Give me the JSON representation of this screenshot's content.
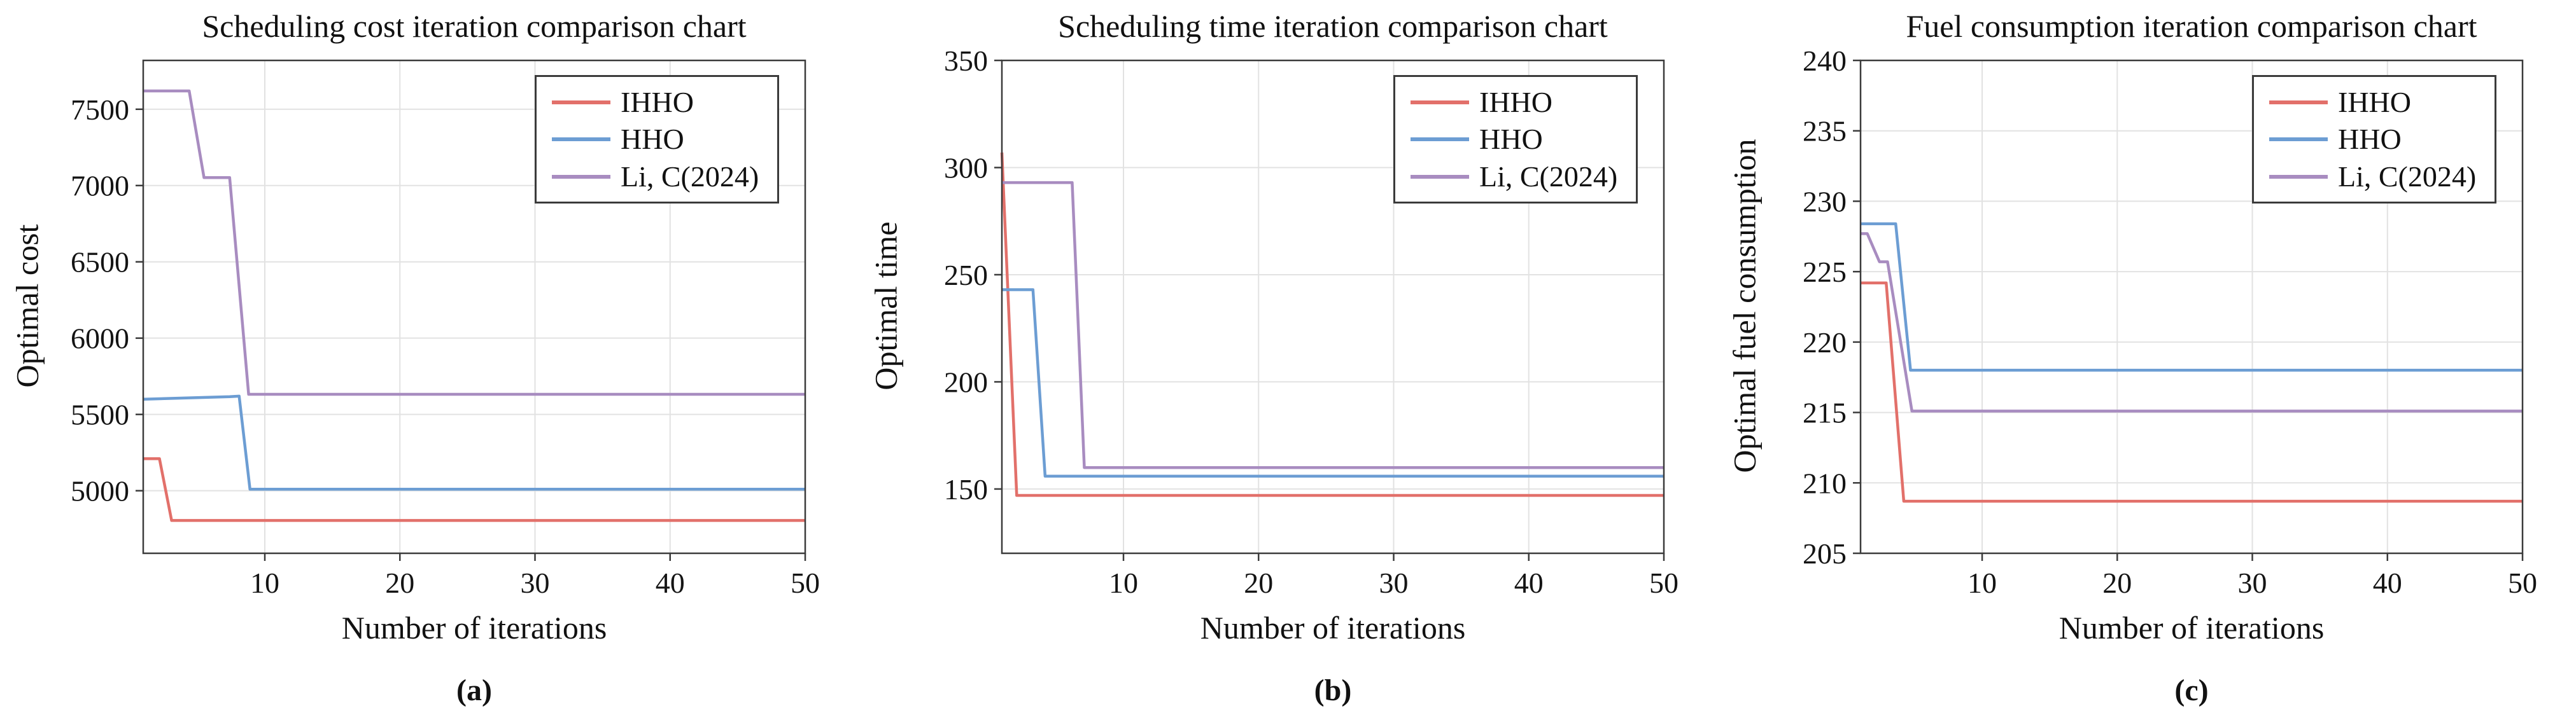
{
  "style": {
    "background": "#ffffff",
    "grid_color": "#e2e2e2",
    "axis_color": "#3b3b3b",
    "text_color": "#141414",
    "legend_border_color": "#3b3b3b"
  },
  "chart_data": [
    {
      "type": "line",
      "title": "Scheduling cost iteration comparison chart",
      "xlabel": "Number of iterations",
      "ylabel": "Optimal cost",
      "caption": "(a)",
      "xlim": [
        1,
        50
      ],
      "ylim": [
        4590,
        7820
      ],
      "xticks": [
        10,
        20,
        30,
        40,
        50
      ],
      "yticks": [
        5000,
        5500,
        6000,
        6500,
        7000,
        7500
      ],
      "grid": true,
      "legend_position": "top-right",
      "series": [
        {
          "name": "IHHO",
          "color": "#e2706a",
          "points": [
            [
              1,
              5210
            ],
            [
              2.2,
              5210
            ],
            [
              3.1,
              4805
            ],
            [
              50,
              4805
            ]
          ]
        },
        {
          "name": "HHO",
          "color": "#6c9dd3",
          "points": [
            [
              1,
              5600
            ],
            [
              7.4,
              5616
            ],
            [
              8.1,
              5620
            ],
            [
              8.9,
              5010
            ],
            [
              50,
              5010
            ]
          ]
        },
        {
          "name": "Li, C(2024)",
          "color": "#a88cc0",
          "points": [
            [
              1,
              7620
            ],
            [
              4.4,
              7620
            ],
            [
              5.5,
              7052
            ],
            [
              7.4,
              7052
            ],
            [
              8.8,
              5632
            ],
            [
              50,
              5632
            ]
          ]
        }
      ]
    },
    {
      "type": "line",
      "title": "Scheduling time iteration comparison chart",
      "xlabel": "Number of iterations",
      "ylabel": "Optimal time",
      "caption": "(b)",
      "xlim": [
        1,
        50
      ],
      "ylim": [
        120,
        350
      ],
      "xticks": [
        10,
        20,
        30,
        40,
        50
      ],
      "yticks": [
        150,
        200,
        250,
        300,
        350
      ],
      "grid": true,
      "legend_position": "top-right",
      "series": [
        {
          "name": "IHHO",
          "color": "#e2706a",
          "points": [
            [
              1,
              307
            ],
            [
              2.1,
              147
            ],
            [
              50,
              147
            ]
          ]
        },
        {
          "name": "HHO",
          "color": "#6c9dd3",
          "points": [
            [
              1,
              243
            ],
            [
              3.3,
              243
            ],
            [
              4.2,
              156
            ],
            [
              50,
              156
            ]
          ]
        },
        {
          "name": "Li, C(2024)",
          "color": "#a88cc0",
          "points": [
            [
              1,
              293
            ],
            [
              6.2,
              293
            ],
            [
              7.1,
              160
            ],
            [
              50,
              160
            ]
          ]
        }
      ]
    },
    {
      "type": "line",
      "title": "Fuel consumption iteration comparison chart",
      "xlabel": "Number of iterations",
      "ylabel": "Optimal fuel consumption",
      "caption": "(c)",
      "xlim": [
        1,
        50
      ],
      "ylim": [
        205,
        240
      ],
      "xticks": [
        10,
        20,
        30,
        40,
        50
      ],
      "yticks": [
        205,
        210,
        215,
        220,
        225,
        230,
        235,
        240
      ],
      "grid": true,
      "legend_position": "top-right",
      "series": [
        {
          "name": "IHHO",
          "color": "#e2706a",
          "points": [
            [
              1,
              224.2
            ],
            [
              2.9,
              224.2
            ],
            [
              4.2,
              208.7
            ],
            [
              50,
              208.7
            ]
          ]
        },
        {
          "name": "HHO",
          "color": "#6c9dd3",
          "points": [
            [
              1,
              228.4
            ],
            [
              3.6,
              228.4
            ],
            [
              4.7,
              218
            ],
            [
              50,
              218
            ]
          ]
        },
        {
          "name": "Li, C(2024)",
          "color": "#a88cc0",
          "points": [
            [
              1,
              227.7
            ],
            [
              1.5,
              227.7
            ],
            [
              2.4,
              225.7
            ],
            [
              3.0,
              225.7
            ],
            [
              4.8,
              215.1
            ],
            [
              50,
              215.1
            ]
          ]
        }
      ]
    }
  ]
}
